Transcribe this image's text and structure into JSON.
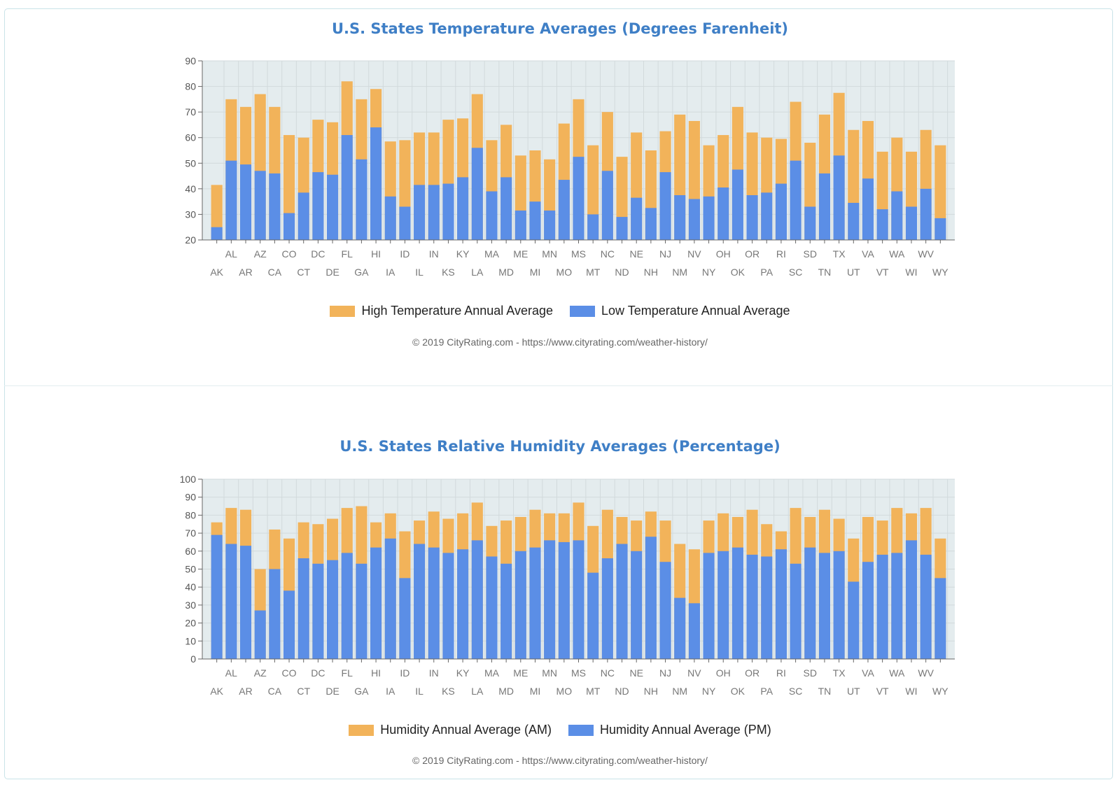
{
  "colors": {
    "high": "#f2b35a",
    "low": "#5b8ee6",
    "plot_bg": "#e4ecee",
    "grid": "#d2dadc",
    "title": "#3f7fc6",
    "border": "#c9e3e8"
  },
  "chart_data": [
    {
      "type": "bar",
      "title": "U.S. States Temperature Averages (Degrees Farenheit)",
      "categories": [
        "AK",
        "AL",
        "AR",
        "AZ",
        "CA",
        "CO",
        "CT",
        "DC",
        "DE",
        "FL",
        "GA",
        "HI",
        "IA",
        "ID",
        "IL",
        "IN",
        "KS",
        "KY",
        "LA",
        "MA",
        "MD",
        "ME",
        "MI",
        "MN",
        "MO",
        "MS",
        "MT",
        "NC",
        "ND",
        "NE",
        "NH",
        "NJ",
        "NM",
        "NV",
        "NY",
        "OH",
        "OK",
        "OR",
        "PA",
        "RI",
        "SC",
        "SD",
        "TN",
        "TX",
        "UT",
        "VA",
        "VT",
        "WA",
        "WI",
        "WV",
        "WY"
      ],
      "ylim": [
        20,
        90
      ],
      "yticks": [
        20,
        30,
        40,
        50,
        60,
        70,
        80,
        90
      ],
      "grid": true,
      "legend_position": "bottom-center",
      "series": [
        {
          "name": "High Temperature Annual Average",
          "color": "#f2b35a",
          "values": [
            41.5,
            75,
            72,
            77,
            72,
            61,
            60,
            67,
            66,
            82,
            75,
            79,
            58.5,
            59,
            62,
            62,
            67,
            67.5,
            77,
            59,
            65,
            53,
            55,
            51.5,
            65.5,
            75,
            57,
            70,
            52.5,
            62,
            55,
            62.5,
            69,
            66.5,
            57,
            61,
            72,
            62,
            60,
            59.5,
            74,
            58,
            69,
            77.5,
            63,
            66.5,
            54.5,
            60,
            54.5,
            63,
            57
          ]
        },
        {
          "name": "Low Temperature Annual Average",
          "color": "#5b8ee6",
          "values": [
            25,
            51,
            49.5,
            47,
            46,
            30.5,
            38.5,
            46.5,
            45.5,
            61,
            51.5,
            64,
            37,
            33,
            41.5,
            41.5,
            42,
            44.5,
            56,
            39,
            44.5,
            31.5,
            35,
            31.5,
            43.5,
            52.5,
            30,
            47,
            29,
            36.5,
            32.5,
            46.5,
            37.5,
            36,
            37,
            40.5,
            47.5,
            37.5,
            38.5,
            42,
            51,
            33,
            46,
            53,
            34.5,
            44,
            32,
            39,
            33,
            40,
            28.5
          ]
        }
      ],
      "footnote": "© 2019 CityRating.com - https://www.cityrating.com/weather-history/"
    },
    {
      "type": "bar",
      "title": "U.S. States Relative Humidity Averages (Percentage)",
      "categories": [
        "AK",
        "AL",
        "AR",
        "AZ",
        "CA",
        "CO",
        "CT",
        "DC",
        "DE",
        "FL",
        "GA",
        "HI",
        "IA",
        "ID",
        "IL",
        "IN",
        "KS",
        "KY",
        "LA",
        "MA",
        "MD",
        "ME",
        "MI",
        "MN",
        "MO",
        "MS",
        "MT",
        "NC",
        "ND",
        "NE",
        "NH",
        "NJ",
        "NM",
        "NV",
        "NY",
        "OH",
        "OK",
        "OR",
        "PA",
        "RI",
        "SC",
        "SD",
        "TN",
        "TX",
        "UT",
        "VA",
        "VT",
        "WA",
        "WI",
        "WV",
        "WY"
      ],
      "ylim": [
        0,
        100
      ],
      "yticks": [
        0,
        10,
        20,
        30,
        40,
        50,
        60,
        70,
        80,
        90,
        100
      ],
      "grid": true,
      "legend_position": "bottom-center",
      "series": [
        {
          "name": "Humidity Annual Average (AM)",
          "color": "#f2b35a",
          "values": [
            76,
            84,
            83,
            50,
            72,
            67,
            76,
            75,
            78,
            84,
            85,
            76,
            81,
            71,
            77,
            82,
            78,
            81,
            87,
            74,
            77,
            79,
            83,
            81,
            81,
            87,
            74,
            83,
            79,
            77,
            82,
            77,
            64,
            61,
            77,
            81,
            79,
            83,
            75,
            71,
            84,
            79,
            83,
            78,
            67,
            79,
            77,
            84,
            81,
            84,
            67
          ]
        },
        {
          "name": "Humidity Annual Average (PM)",
          "color": "#5b8ee6",
          "values": [
            69,
            64,
            63,
            27,
            50,
            38,
            56,
            53,
            55,
            59,
            53,
            62,
            67,
            45,
            64,
            62,
            59,
            61,
            66,
            57,
            53,
            60,
            62,
            66,
            65,
            66,
            48,
            56,
            64,
            60,
            68,
            54,
            34,
            31,
            59,
            60,
            62,
            58,
            57,
            61,
            53,
            62,
            59,
            60,
            43,
            54,
            58,
            59,
            66,
            58,
            45
          ]
        }
      ],
      "footnote": "© 2019 CityRating.com - https://www.cityrating.com/weather-history/"
    }
  ]
}
